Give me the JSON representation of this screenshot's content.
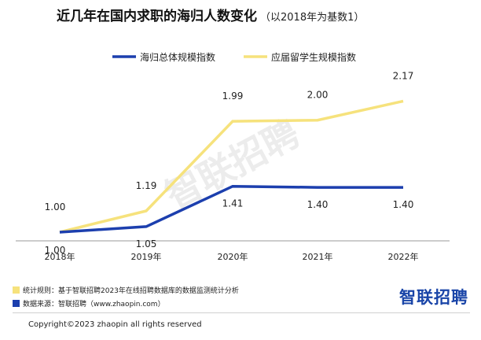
{
  "title": {
    "main": "近几年在国内求职的海归人数变化",
    "sub": "（以2018年为基数1）"
  },
  "colors": {
    "series_1": "#1c3fae",
    "series_2": "#f6e27c",
    "axis": "#999999",
    "brand": "#1a45a8"
  },
  "chart_data": {
    "type": "line",
    "categories": [
      "2018年",
      "2019年",
      "2020年",
      "2021年",
      "2022年"
    ],
    "series": [
      {
        "name": "海归总体规模指数",
        "values": [
          1.0,
          1.05,
          1.41,
          1.4,
          1.4
        ],
        "labels": [
          "1.00",
          "1.05",
          "1.41",
          "1.40",
          "1.40"
        ]
      },
      {
        "name": "应届留学生规模指数",
        "values": [
          1.0,
          1.19,
          1.99,
          2.0,
          2.17
        ],
        "labels": [
          "1.00",
          "1.19",
          "1.99",
          "2.00",
          "2.17"
        ]
      }
    ],
    "ylim": [
      1.0,
      2.3
    ],
    "grid": false,
    "legend": "top-center",
    "watermark": "智联招聘"
  },
  "footer": {
    "rule": "统计规则：基于智联招聘2023年在线招聘数据库的数据监测统计分析",
    "source": "数据来源：智联招聘（www.zhaopin.com）",
    "brand": "智联招聘",
    "copyright": "Copyright©2023 zhaopin all rights reserved"
  }
}
